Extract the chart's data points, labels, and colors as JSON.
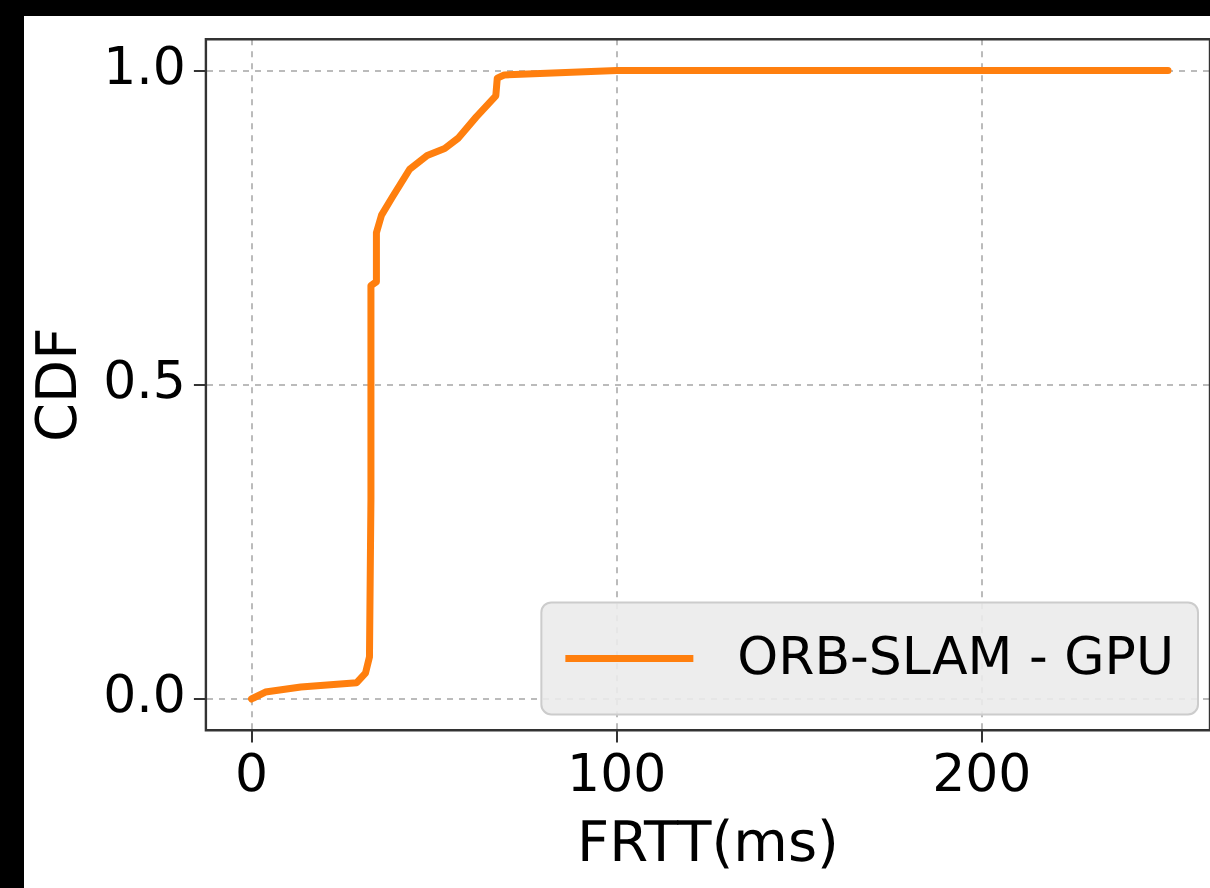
{
  "chart_data": {
    "type": "line",
    "xlabel": "FRTT(ms)",
    "ylabel": "CDF",
    "xlim": [
      -12.5,
      262.5
    ],
    "ylim": [
      -0.05,
      1.05
    ],
    "xticks": [
      0,
      100,
      200
    ],
    "yticks": [
      {
        "value": 0,
        "label": "0.0"
      },
      {
        "value": 0.5,
        "label": "0.5"
      },
      {
        "value": 1,
        "label": "1.0"
      }
    ],
    "grid": true,
    "legend": "bottom right",
    "marker": "none",
    "line_style": "solid",
    "series": [
      {
        "name": "ORB-SLAM - GPU",
        "color": "#ff7f0e",
        "x": [
          0,
          3.8,
          13.5,
          28.8,
          31.2,
          32.3,
          32.7,
          32.7,
          34.2,
          34.2,
          35.6,
          38.5,
          43.3,
          48.1,
          52.9,
          56.7,
          61.5,
          66.9,
          67.3,
          69.2,
          100,
          251
        ],
        "values": [
          0,
          0.011,
          0.019,
          0.026,
          0.041,
          0.067,
          0.318,
          0.658,
          0.664,
          0.742,
          0.77,
          0.798,
          0.843,
          0.865,
          0.876,
          0.893,
          0.926,
          0.96,
          0.988,
          0.993,
          1.0,
          1.0
        ]
      }
    ]
  }
}
